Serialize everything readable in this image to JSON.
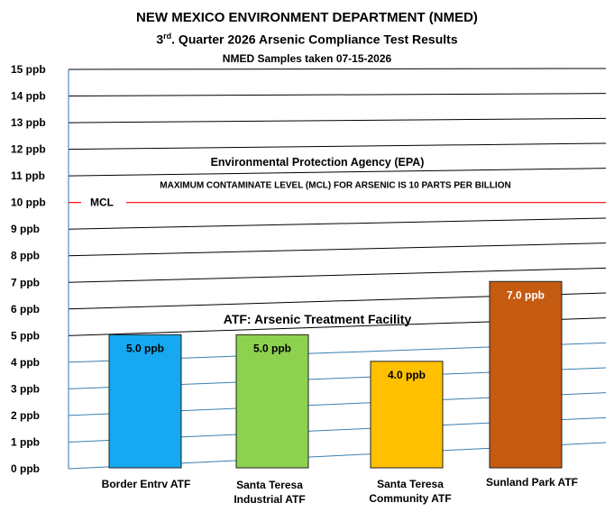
{
  "chart_data": {
    "type": "bar",
    "title": "NEW MEXICO ENVIRONMENT DEPARTMENT (NMED)",
    "subtitle_prefix": "3",
    "subtitle_sup": "rd",
    "subtitle_rest": ". Quarter 2026 Arsenic Compliance Test Results",
    "subtitle2": "NMED Samples taken 07-15-2026",
    "categories": [
      [
        "Border Entrv ATF"
      ],
      [
        "Santa Teresa",
        "Industrial ATF"
      ],
      [
        "Santa Teresa",
        "Community ATF"
      ],
      [
        "Sunland Park ATF"
      ]
    ],
    "values": [
      5.0,
      5.0,
      4.0,
      7.0
    ],
    "data_labels": [
      "5.0 ppb",
      "5.0 ppb",
      "4.0 ppb",
      "7.0 ppb"
    ],
    "bar_colors": [
      "#16a8f0",
      "#8ed14f",
      "#ffc000",
      "#c55a11"
    ],
    "label_colors": [
      "#000000",
      "#000000",
      "#000000",
      "#ffffff"
    ],
    "ylim": [
      0,
      15
    ],
    "yticks": [
      {
        "value": 0,
        "label": "0 ppb"
      },
      {
        "value": 1,
        "label": "1 ppb"
      },
      {
        "value": 2,
        "label": "2 ppb"
      },
      {
        "value": 3,
        "label": "3 ppb"
      },
      {
        "value": 4,
        "label": "4 ppb"
      },
      {
        "value": 5,
        "label": "5 ppb"
      },
      {
        "value": 6,
        "label": "6 ppb"
      },
      {
        "value": 7,
        "label": "7 ppb"
      },
      {
        "value": 8,
        "label": "8 ppb"
      },
      {
        "value": 9,
        "label": "9 ppb"
      },
      {
        "value": 10,
        "label": "10 ppb"
      },
      {
        "value": 11,
        "label": "11 ppb"
      },
      {
        "value": 12,
        "label": "12 ppb"
      },
      {
        "value": 13,
        "label": "13 ppb"
      },
      {
        "value": 14,
        "label": "14 ppb"
      },
      {
        "value": 15,
        "label": "15 ppb"
      }
    ],
    "grid": true,
    "reference_line": {
      "value": 10,
      "label": "MCL",
      "color": "#ff0000"
    },
    "annotations": {
      "epa": "Environmental Protection Agency (EPA)",
      "mcl_text": "MAXIMUM CONTAMINATE LEVEL (MCL) FOR ARSENIC IS 10 PARTS PER BILLION",
      "atf": "ATF: Arsenic Treatment Facility"
    }
  }
}
